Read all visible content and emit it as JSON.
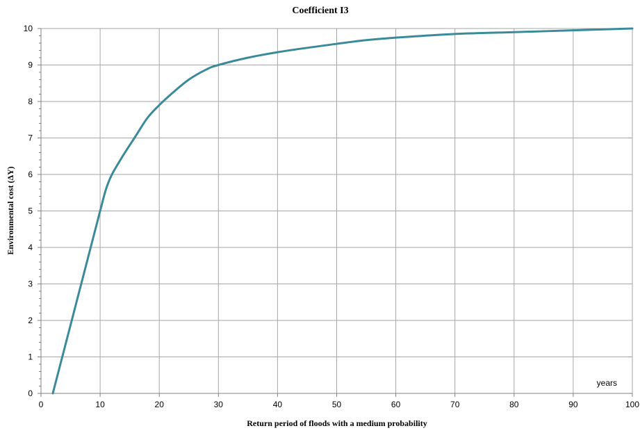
{
  "chart_data": {
    "type": "line",
    "title": "Coefficient I3",
    "xlabel": "Return period of floods with a medium probability",
    "ylabel": "Environmental cost (ΔY)",
    "x_unit": "years",
    "xlim": [
      0,
      100
    ],
    "ylim": [
      0,
      10
    ],
    "x_ticks": [
      0,
      10,
      20,
      30,
      40,
      50,
      60,
      70,
      80,
      90,
      100
    ],
    "y_ticks": [
      0,
      1,
      2,
      3,
      4,
      5,
      6,
      7,
      8,
      9,
      10
    ],
    "grid": true,
    "legend": "none",
    "series": [
      {
        "color": "#3a8a9a",
        "x": [
          2,
          4,
          6,
          8,
          10,
          11,
          12,
          14,
          16,
          18,
          20,
          22,
          25,
          28,
          30,
          35,
          40,
          45,
          50,
          55,
          60,
          70,
          80,
          90,
          100
        ],
        "y": [
          0,
          1.25,
          2.5,
          3.75,
          5.0,
          5.6,
          6.0,
          6.55,
          7.05,
          7.55,
          7.9,
          8.2,
          8.6,
          8.88,
          9.0,
          9.2,
          9.35,
          9.47,
          9.58,
          9.68,
          9.75,
          9.85,
          9.9,
          9.95,
          10.0
        ]
      }
    ]
  }
}
